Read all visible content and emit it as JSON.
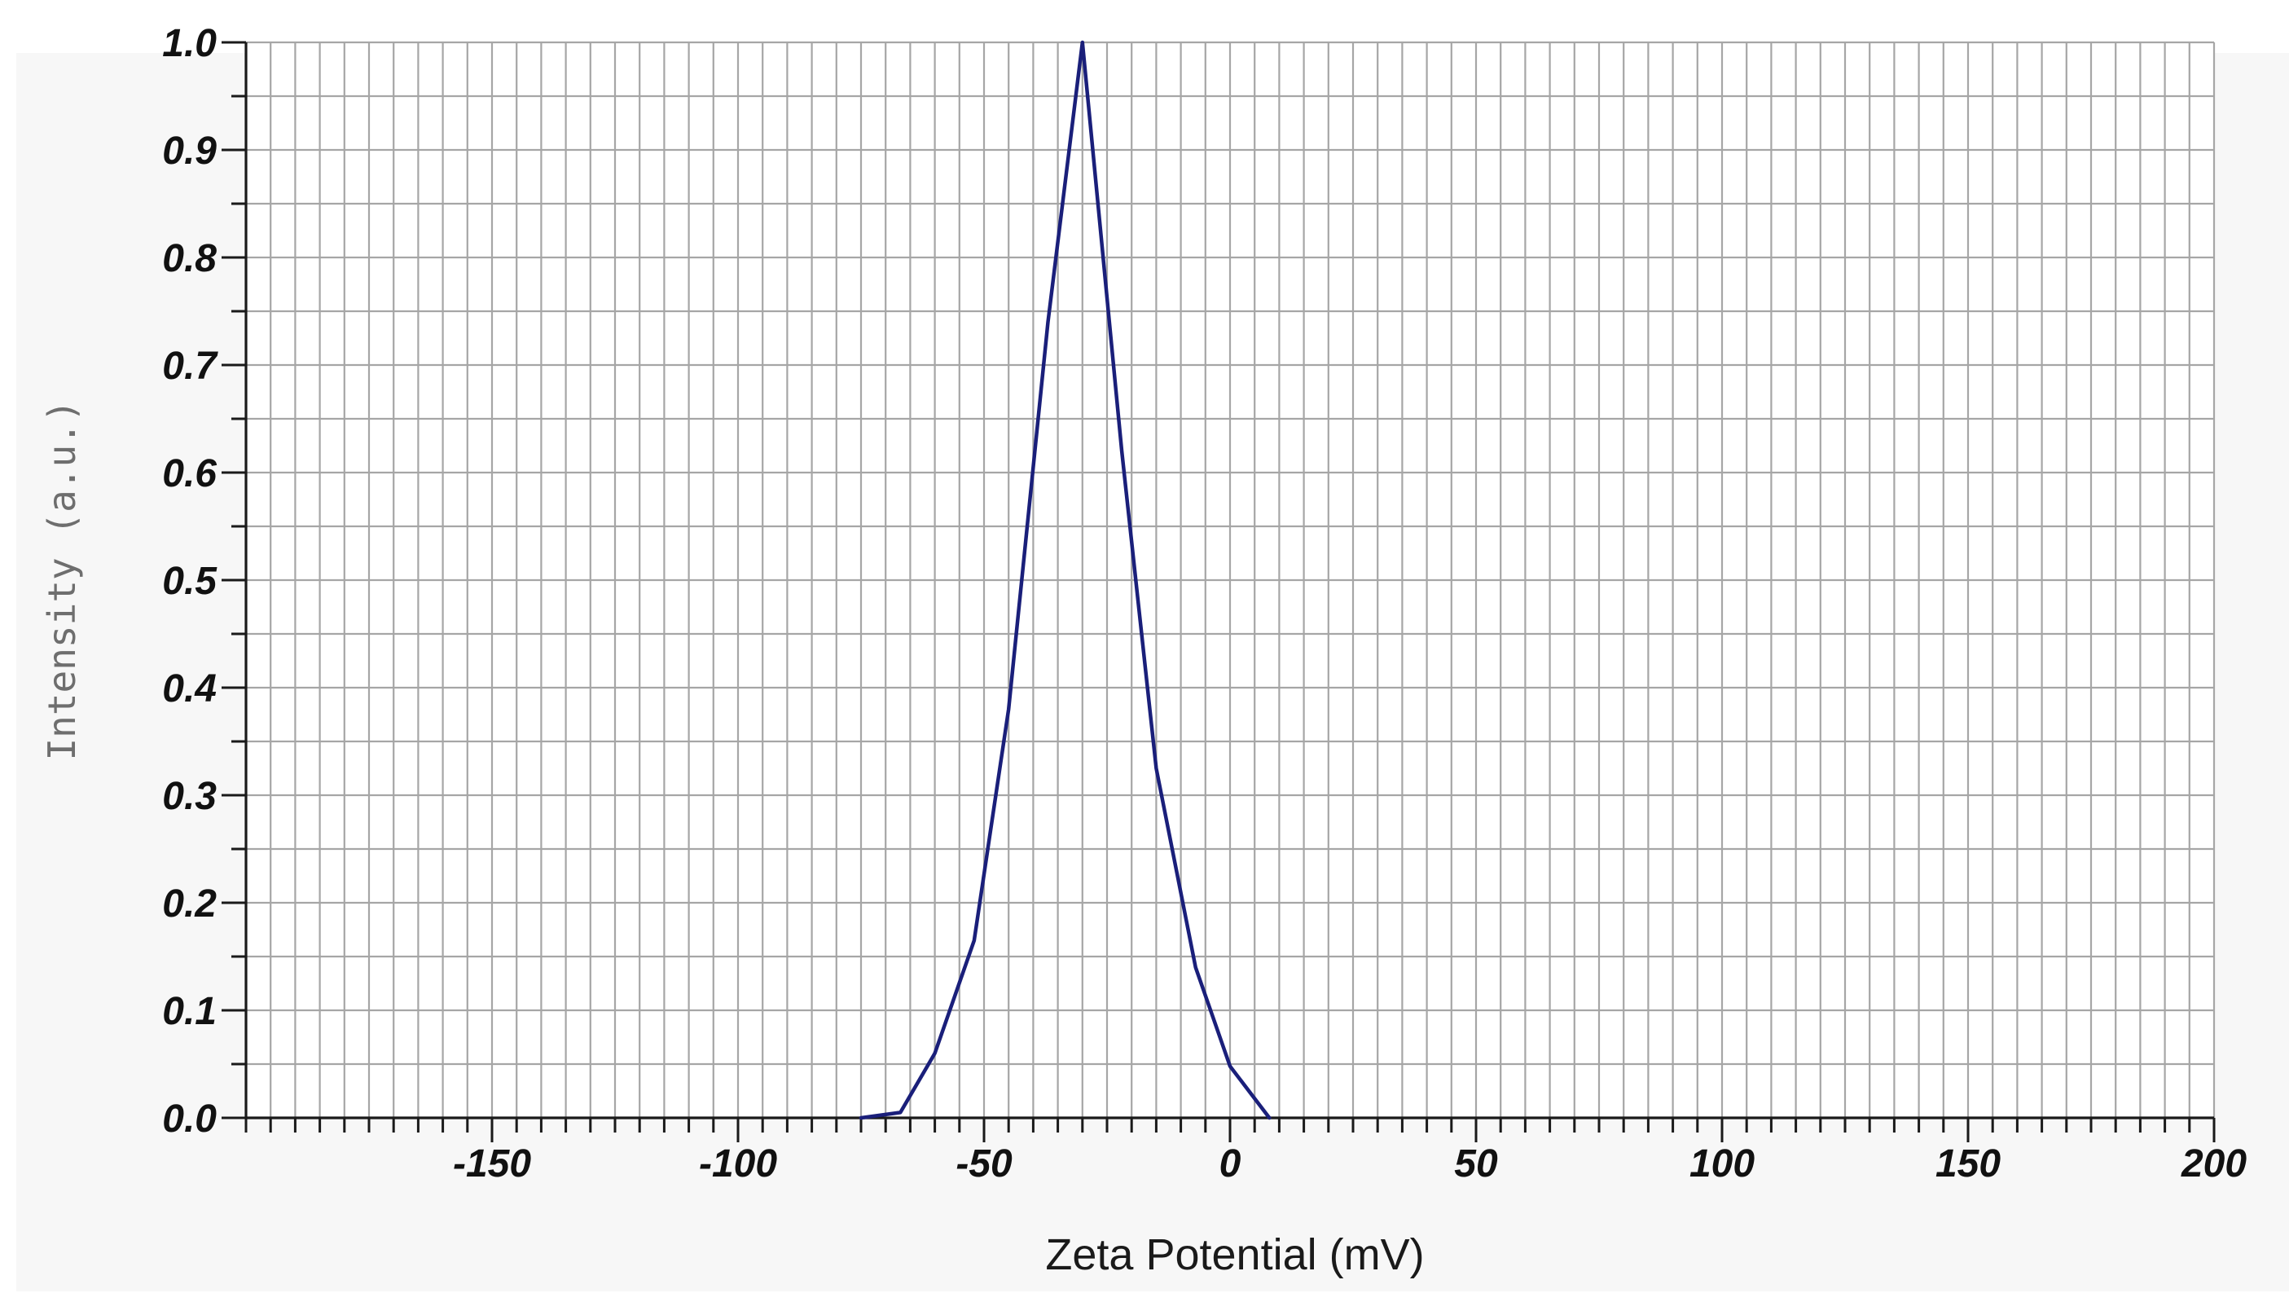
{
  "chart_data": {
    "type": "line",
    "title": "",
    "xlabel": "Zeta Potential (mV)",
    "ylabel": "Intensity (a.u.)",
    "xlim": [
      -200,
      200
    ],
    "ylim": [
      0.0,
      1.0
    ],
    "x_ticks": [
      -150,
      -100,
      -50,
      0,
      50,
      100,
      150,
      200
    ],
    "x_tick_labels": [
      "-150",
      "-100",
      "-50",
      "0",
      "50",
      "100",
      "150",
      "200"
    ],
    "y_ticks": [
      0.0,
      0.1,
      0.2,
      0.3,
      0.4,
      0.5,
      0.6,
      0.7,
      0.8,
      0.9,
      1.0
    ],
    "y_tick_labels": [
      "0.0",
      "0.1",
      "0.2",
      "0.3",
      "0.4",
      "0.5",
      "0.6",
      "0.7",
      "0.8",
      "0.9",
      "1.0"
    ],
    "grid": true,
    "series": [
      {
        "color": "#1a1f7a",
        "x": [
          -75,
          -67,
          -60,
          -52,
          -45,
          -37,
          -30,
          -22,
          -15,
          -7,
          0,
          8
        ],
        "y": [
          0.0,
          0.005,
          0.06,
          0.165,
          0.38,
          0.74,
          1.0,
          0.62,
          0.325,
          0.14,
          0.048,
          0.0
        ]
      }
    ]
  }
}
